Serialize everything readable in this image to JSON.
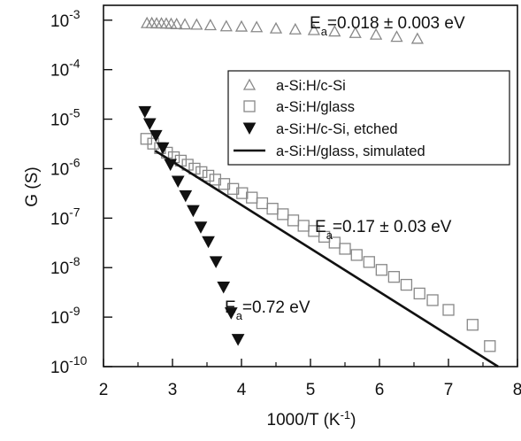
{
  "chart_data": {
    "type": "scatter",
    "title": "",
    "xlabel": {
      "main": "1000/T (K",
      "sup": "-1",
      "end": ")"
    },
    "ylabel": "G (S)",
    "xlim": [
      2,
      8
    ],
    "ylim_log10": [
      -10,
      -2.7
    ],
    "y_scale": "log",
    "grid": false,
    "x_ticks": [
      "2",
      "3",
      "4",
      "5",
      "6",
      "7",
      "8"
    ],
    "y_ticks": [
      {
        "base": "10",
        "exp": "-3"
      },
      {
        "base": "10",
        "exp": "-4"
      },
      {
        "base": "10",
        "exp": "-5"
      },
      {
        "base": "10",
        "exp": "-6"
      },
      {
        "base": "10",
        "exp": "-7"
      },
      {
        "base": "10",
        "exp": "-8"
      },
      {
        "base": "10",
        "exp": "-9"
      },
      {
        "base": "10",
        "exp": "-10"
      }
    ],
    "legend_position": "top-right",
    "series": [
      {
        "name": "a-Si:H/c-Si",
        "marker": "triangle-up-open",
        "x": [
          2.63,
          2.7,
          2.77,
          2.84,
          2.91,
          2.98,
          3.06,
          3.18,
          3.35,
          3.55,
          3.78,
          4.0,
          4.22,
          4.5,
          4.78,
          5.05,
          5.35,
          5.65,
          5.95,
          6.25,
          6.55
        ],
        "y": [
          0.00087,
          0.00087,
          0.00086,
          0.00086,
          0.00085,
          0.00084,
          0.00083,
          0.00082,
          0.00081,
          0.00079,
          0.00075,
          0.00074,
          0.00072,
          0.00068,
          0.00065,
          0.00063,
          0.00059,
          0.00055,
          0.00051,
          0.00046,
          0.00042
        ]
      },
      {
        "name": "a-Si:H/glass",
        "marker": "square-open",
        "x": [
          2.62,
          2.72,
          2.82,
          2.92,
          3.02,
          3.12,
          3.22,
          3.32,
          3.42,
          3.52,
          3.62,
          3.75,
          3.88,
          4.01,
          4.15,
          4.3,
          4.45,
          4.6,
          4.75,
          4.9,
          5.05,
          5.2,
          5.35,
          5.5,
          5.67,
          5.85,
          6.03,
          6.21,
          6.39,
          6.58,
          6.77,
          7.0,
          7.35,
          7.6
        ],
        "y": [
          4e-06,
          3.2e-06,
          2.6e-06,
          2.1e-06,
          1.7e-06,
          1.45e-06,
          1.2e-06,
          1e-06,
          8.5e-07,
          7.2e-07,
          6e-07,
          4.9e-07,
          3.9e-07,
          3.2e-07,
          2.6e-07,
          2e-07,
          1.55e-07,
          1.2e-07,
          9e-08,
          7e-08,
          5.5e-08,
          4.2e-08,
          3.2e-08,
          2.4e-08,
          1.8e-08,
          1.3e-08,
          9e-09,
          6.5e-09,
          4.5e-09,
          3e-09,
          2.2e-09,
          1.4e-09,
          7e-10,
          2.6e-10
        ]
      },
      {
        "name": "a-Si:H/c-Si, etched",
        "marker": "triangle-down-filled",
        "x": [
          2.6,
          2.67,
          2.76,
          2.86,
          2.97,
          3.08,
          3.19,
          3.3,
          3.41,
          3.52,
          3.63,
          3.74,
          3.85,
          3.95
        ],
        "y": [
          1.4e-05,
          8e-06,
          4.6e-06,
          2.6e-06,
          1.2e-06,
          5.5e-07,
          2.8e-07,
          1.4e-07,
          6.5e-08,
          3.3e-08,
          1.3e-08,
          4e-09,
          1.2e-09,
          3.5e-10
        ]
      },
      {
        "name": "a-Si:H/glass, simulated",
        "marker": "line",
        "x": [
          2.75,
          7.72
        ],
        "y": [
          2.3e-06,
          1e-10
        ]
      }
    ],
    "annotations": [
      {
        "label": "E",
        "sub": "a",
        "text": "=0.018 ± 0.003 eV"
      },
      {
        "label": "E",
        "sub": "a",
        "text": "=0.17 ± 0.03 eV"
      },
      {
        "label": "E",
        "sub": "a",
        "text": "=0.72 eV"
      }
    ]
  }
}
